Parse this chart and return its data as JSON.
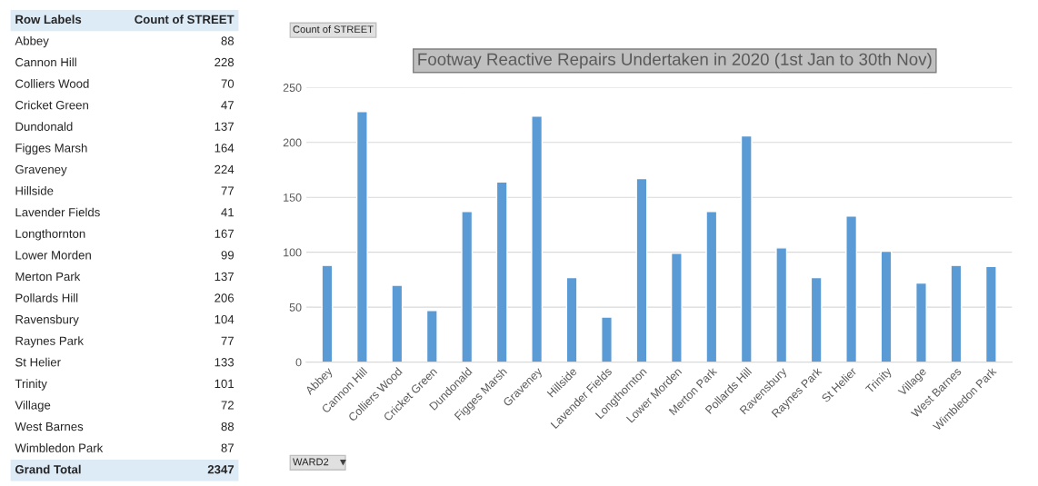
{
  "chart_data": [
    {
      "type": "other",
      "annotations": [
        "Row Labels",
        "Count of STREET",
        "Abbey",
        "88",
        "Cannon Hill",
        "228",
        "Colliers Wood",
        "70",
        "Cricket Green",
        "47",
        "Dundonald",
        "137",
        "Figges Marsh",
        "164",
        "Graveney",
        "224",
        "Hillside",
        "77",
        "Lavender Fields",
        "41",
        "Longthornton",
        "167",
        "Lower Morden",
        "99",
        "Merton Park",
        "137",
        "Pollards Hill",
        "206",
        "Ravensbury",
        "104",
        "Raynes Park",
        "77",
        "St Helier",
        "133",
        "Trinity",
        "101",
        "Village",
        "72",
        "West Barnes",
        "88",
        "Wimbledon Park",
        "87",
        "Grand Total",
        "2347"
      ]
    },
    {
      "type": "bar",
      "title": "Footway Reactive Repairs Undertaken in 2020 (1st Jan to 30th Nov)",
      "categories": [
        "Abbey",
        "Cannon Hill",
        "Colliers Wood",
        "Cricket Green",
        "Dundonald",
        "Figges Marsh",
        "Graveney",
        "Hillside",
        "Lavender Fields",
        "Longthornton",
        "Lower Morden",
        "Merton Park",
        "Pollards Hill",
        "Ravensbury",
        "Raynes Park",
        "St Helier",
        "Trinity",
        "Village",
        "West Barnes",
        "Wimbledon Park"
      ],
      "values": [
        88,
        228,
        70,
        47,
        137,
        164,
        224,
        77,
        41,
        167,
        99,
        137,
        206,
        104,
        77,
        133,
        101,
        72,
        88,
        87
      ],
      "color": "#5b9bd5",
      "ylim": [
        0,
        250
      ],
      "yticks": [
        0,
        50,
        100,
        150,
        200,
        250
      ],
      "grid": "y",
      "annotations": [
        "Count of STREET",
        "WARD2"
      ]
    }
  ]
}
